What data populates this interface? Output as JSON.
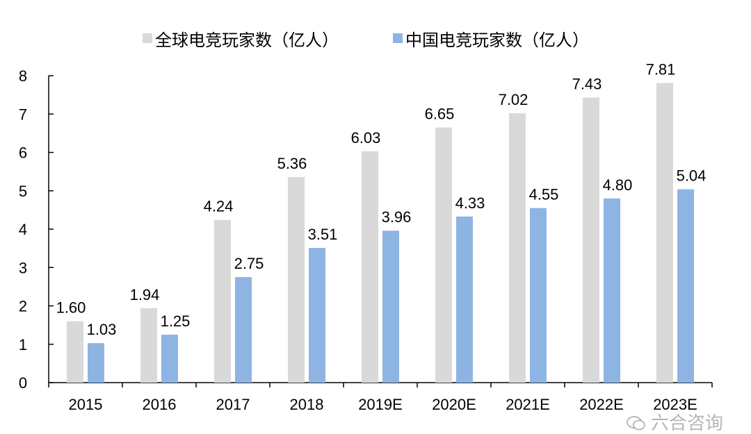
{
  "chart_data": {
    "type": "bar",
    "title": "",
    "xlabel": "",
    "ylabel": "",
    "categories": [
      "2015",
      "2016",
      "2017",
      "2018",
      "2019E",
      "2020E",
      "2021E",
      "2022E",
      "2023E"
    ],
    "series": [
      {
        "name": "全球电竞玩家数（亿人）",
        "color": "#d9d9d9",
        "values": [
          1.6,
          1.94,
          4.24,
          5.36,
          6.03,
          6.65,
          7.02,
          7.43,
          7.81
        ]
      },
      {
        "name": "中国电竞玩家数（亿人）",
        "color": "#8eb4e3",
        "values": [
          1.03,
          1.25,
          2.75,
          3.51,
          3.96,
          4.33,
          4.55,
          4.8,
          5.04
        ]
      }
    ],
    "ylim": [
      0,
      8
    ],
    "yticks": [
      0,
      1,
      2,
      3,
      4,
      5,
      6,
      7,
      8
    ],
    "grid": false,
    "legend": "top",
    "data_labels": true
  },
  "watermark": {
    "text": "六合咨询",
    "icon": "wechat-icon"
  }
}
